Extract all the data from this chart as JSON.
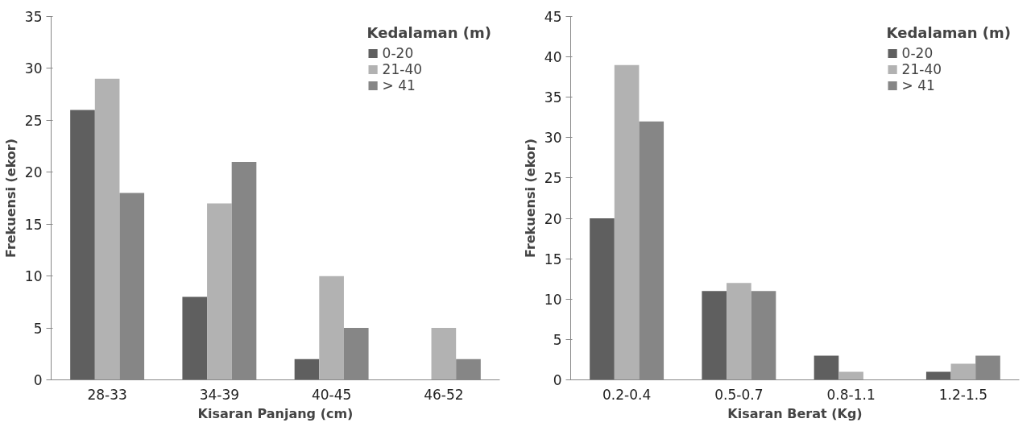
{
  "chart_data": [
    {
      "type": "bar",
      "xlabel": "Kisaran Panjang (cm)",
      "ylabel": "Frekuensi (ekor)",
      "legend_title": "Kedalaman (m)",
      "legend": "top right",
      "categories": [
        "28-33",
        "34-39",
        "40-45",
        "46-52"
      ],
      "ylim": [
        0,
        35
      ],
      "yticks": [
        0,
        5,
        10,
        15,
        20,
        25,
        30,
        35
      ],
      "series": [
        {
          "name": "0-20",
          "color": "#5f5f5f",
          "values": [
            26,
            8,
            2,
            0
          ]
        },
        {
          "name": "21-40",
          "color": "#b2b2b2",
          "values": [
            29,
            17,
            10,
            5
          ]
        },
        {
          "name": "> 41",
          "color": "#868686",
          "values": [
            18,
            21,
            5,
            2
          ]
        }
      ]
    },
    {
      "type": "bar",
      "xlabel": "Kisaran Berat (Kg)",
      "ylabel": "Frekuensi (ekor)",
      "legend_title": "Kedalaman (m)",
      "legend": "top right",
      "categories": [
        "0.2-0.4",
        "0.5-0.7",
        "0.8-1.1",
        "1.2-1.5"
      ],
      "ylim": [
        0,
        45
      ],
      "yticks": [
        0,
        5,
        10,
        15,
        20,
        25,
        30,
        35,
        40,
        45
      ],
      "series": [
        {
          "name": "0-20",
          "color": "#5f5f5f",
          "values": [
            20,
            11,
            3,
            1
          ]
        },
        {
          "name": "21-40",
          "color": "#b2b2b2",
          "values": [
            39,
            12,
            1,
            2
          ]
        },
        {
          "name": "> 41",
          "color": "#868686",
          "values": [
            32,
            11,
            0,
            3
          ]
        }
      ]
    }
  ]
}
